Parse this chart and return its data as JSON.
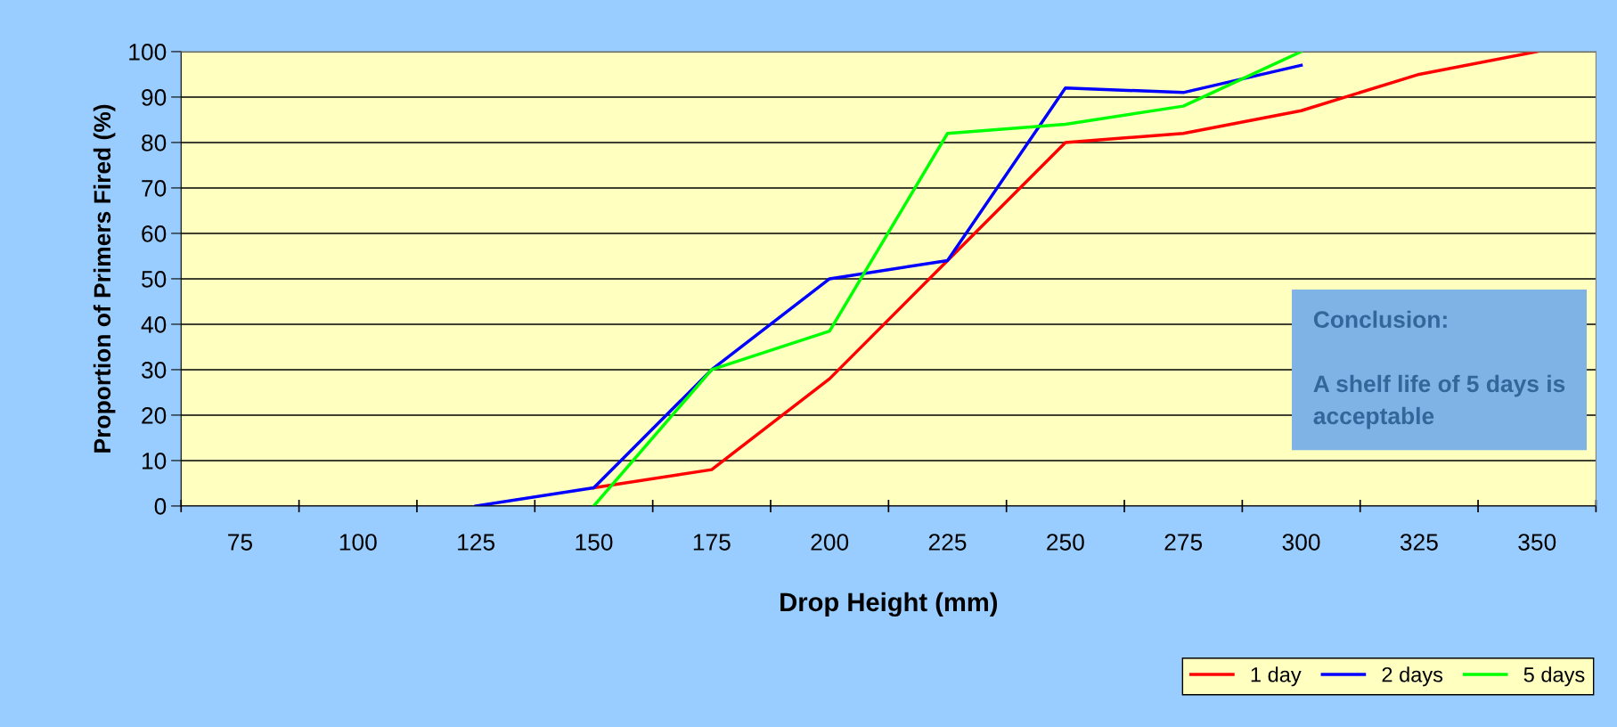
{
  "chart_data": {
    "type": "line",
    "xlabel": "Drop Height (mm)",
    "ylabel": "Proportion of Primers Fired (%)",
    "categories": [
      "75",
      "100",
      "125",
      "150",
      "175",
      "200",
      "225",
      "250",
      "275",
      "300",
      "325",
      "350"
    ],
    "series": [
      {
        "name": "1 day",
        "color": "#ff0000",
        "values": [
          null,
          null,
          null,
          4,
          8,
          28,
          54,
          80,
          82,
          87,
          95,
          100
        ]
      },
      {
        "name": "2 days",
        "color": "#0000ff",
        "values": [
          null,
          null,
          0,
          4,
          30,
          50,
          54,
          92,
          91,
          97,
          null,
          null
        ]
      },
      {
        "name": "5 days",
        "color": "#00ff00",
        "values": [
          null,
          null,
          null,
          0,
          30,
          38.5,
          82,
          84,
          88,
          100,
          null,
          null
        ]
      }
    ],
    "ylim": [
      0,
      100
    ],
    "yticks": [
      0,
      10,
      20,
      30,
      40,
      50,
      60,
      70,
      80,
      90,
      100
    ],
    "grid": "y",
    "legend": "bottom right",
    "marker": "none",
    "line_style": "solid",
    "annotations": [
      "Conclusion:\n\nA shelf life of 5 days is\nacceptable"
    ]
  }
}
